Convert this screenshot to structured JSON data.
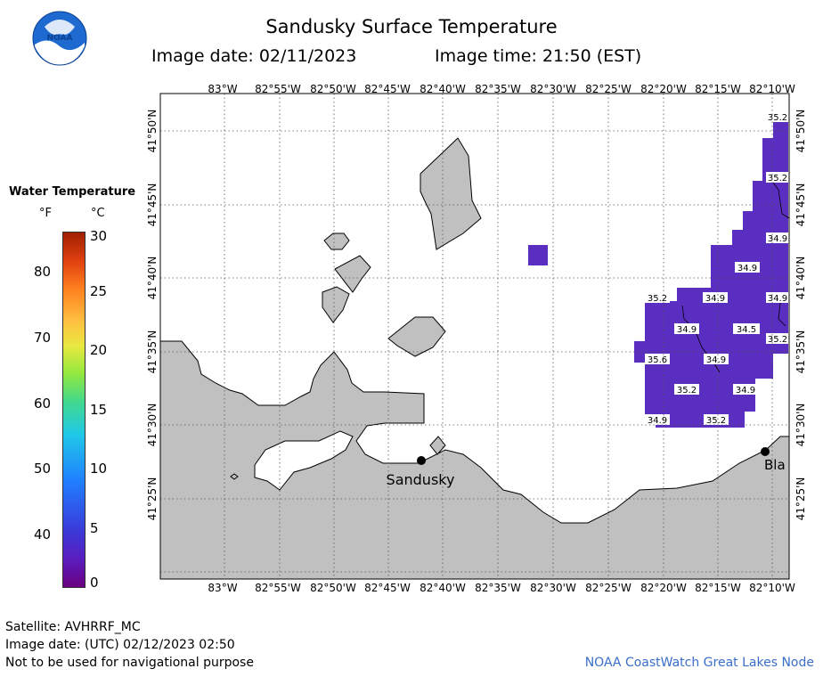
{
  "header": {
    "title": "Sandusky Surface Temperature",
    "image_date": "Image date: 02/11/2023",
    "image_time": "Image time: 21:50 (EST)",
    "logo_text": "NOAA"
  },
  "legend": {
    "title": "Water Temperature",
    "unit_f": "°F",
    "unit_c": "°C",
    "fahrenheit_ticks": [
      "80",
      "70",
      "60",
      "50",
      "40"
    ],
    "celsius_ticks": [
      "30",
      "25",
      "20",
      "15",
      "10",
      "5",
      "0"
    ]
  },
  "map": {
    "lon_labels": [
      "83°W",
      "82°55'W",
      "82°50'W",
      "82°45'W",
      "82°40'W",
      "82°35'W",
      "82°30'W",
      "82°25'W",
      "82°20'W",
      "82°15'W",
      "82°10'W"
    ],
    "lat_labels": [
      "41°50'N",
      "41°45'N",
      "41°40'N",
      "41°35'N",
      "41°30'N",
      "41°25'N"
    ],
    "places": {
      "sandusky": "Sandusky",
      "east_label": "Bla"
    },
    "temperature_labels": [
      "35.2",
      "35.2",
      "34.9",
      "34.9",
      "34.9",
      "35.2",
      "34.9",
      "34.9",
      "34.9",
      "34.5",
      "35.6",
      "34.9",
      "35.2",
      "34.9",
      "35.2",
      "35.2"
    ],
    "colors": {
      "land": "#c0c0c0",
      "water": "#ffffff",
      "cold_water": "#5a2ec0"
    }
  },
  "footer": {
    "satellite": "Satellite: AVHRRF_MC",
    "utc_date": "Image date: (UTC) 02/12/2023  02:50",
    "disclaimer": "Not to be used for navigational purpose",
    "credit": "NOAA CoastWatch Great Lakes Node"
  }
}
